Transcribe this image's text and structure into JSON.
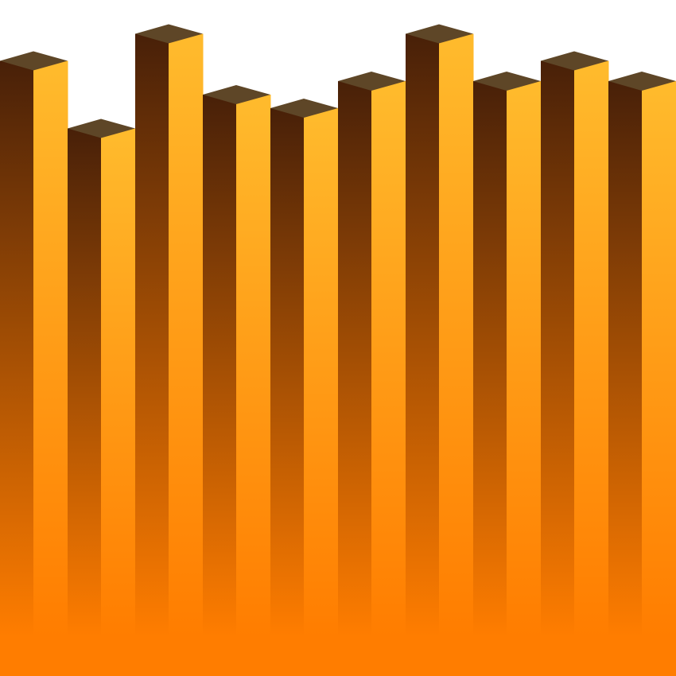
{
  "colors": {
    "background": "#ffffff",
    "orange_base": "#ff7d00",
    "front_face_top": "#ffbb2d",
    "side_face_top": "#482008",
    "top_face": "#5e4627"
  },
  "bars": [
    {
      "level": 0.91
    },
    {
      "level": 0.81
    },
    {
      "level": 0.95
    },
    {
      "level": 0.86
    },
    {
      "level": 0.84
    },
    {
      "level": 0.88
    },
    {
      "level": 0.95
    },
    {
      "level": 0.88
    },
    {
      "level": 0.91
    },
    {
      "level": 0.88
    }
  ]
}
